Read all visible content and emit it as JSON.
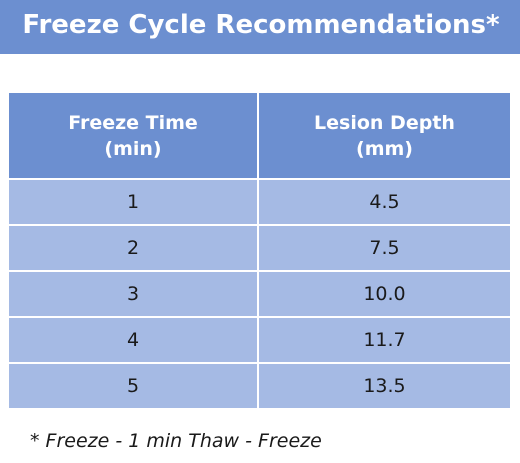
{
  "title": "Freeze Cycle Recommendations*",
  "table": {
    "headers": [
      {
        "line1": "Freeze Time",
        "line2": "(min)"
      },
      {
        "line1": "Lesion Depth",
        "line2": "(mm)"
      }
    ],
    "rows": [
      [
        "1",
        "4.5"
      ],
      [
        "2",
        "7.5"
      ],
      [
        "3",
        "10.0"
      ],
      [
        "4",
        "11.7"
      ],
      [
        "5",
        "13.5"
      ]
    ]
  },
  "footnote": "* Freeze - 1 min Thaw - Freeze",
  "colors": {
    "header_bg": "#6c8fd0",
    "cell_bg": "#a5bae4",
    "divider": "#ffffff"
  }
}
